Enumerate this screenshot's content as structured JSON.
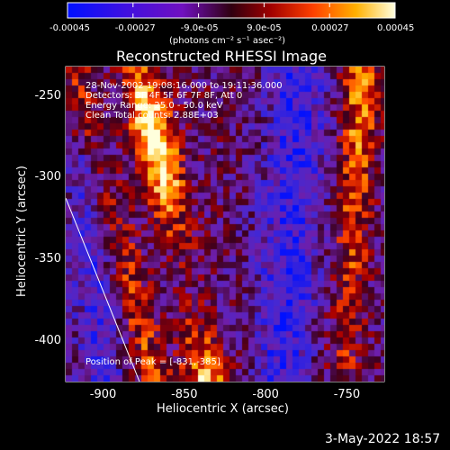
{
  "colorbar": {
    "tick_labels": [
      "-0.00045",
      "-0.00027",
      "-9.0e-05",
      "9.0e-05",
      "0.00027",
      "0.00045"
    ],
    "unit_label": "(photons cm⁻² s⁻¹ asec⁻²)",
    "range": [
      -0.00045,
      0.00045
    ]
  },
  "image": {
    "title": "Reconstructed RHESSI Image",
    "info": {
      "time_range": "28-Nov-2002 19:08:16.000 to 19:11:36.000",
      "detectors": "Detectors: 3F 4F 5F 6F 7F 8F, Att 0",
      "energy_range": "Energy Range: 25.0 - 50.0 keV",
      "algorithm": "Clean     Total counts: 2.88E+03"
    },
    "peak_position": "Position of Peak = [-831,-385]"
  },
  "axes": {
    "x": {
      "label": "Heliocentric X (arcsec)",
      "ticks": [
        -900,
        -850,
        -800,
        -750
      ],
      "tick_labels": [
        "-900",
        "-850",
        "-800",
        "-750"
      ],
      "range": [
        -923,
        -727
      ]
    },
    "y": {
      "label": "Heliocentric Y (arcsec)",
      "ticks": [
        -250,
        -300,
        -350,
        -400
      ],
      "tick_labels": [
        "-250",
        "-300",
        "-350",
        "-400"
      ],
      "range": [
        -425,
        -232
      ]
    }
  },
  "footer": {
    "date": "3-May-2022 18:57"
  }
}
